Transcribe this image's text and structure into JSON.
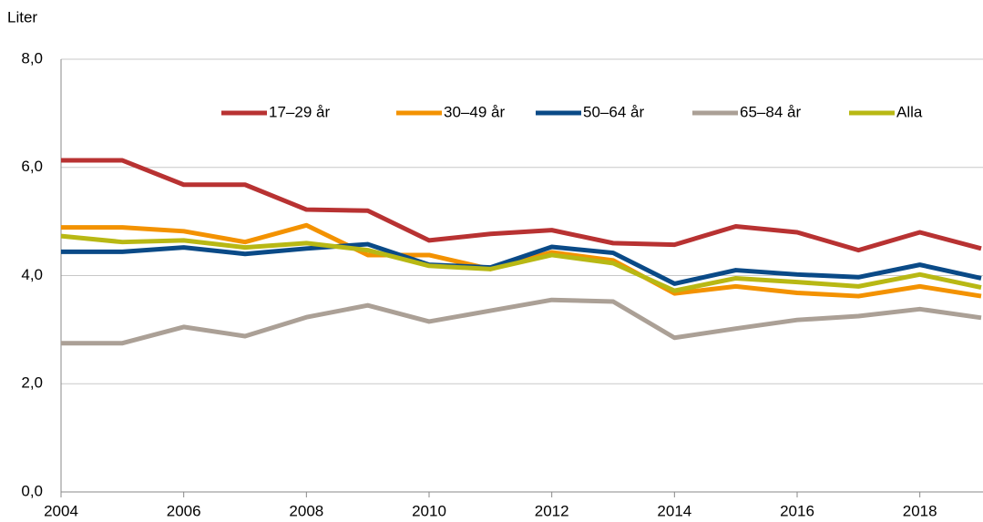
{
  "chart_data": {
    "type": "line",
    "y_label": "Liter",
    "x": [
      2004,
      2005,
      2006,
      2007,
      2008,
      2009,
      2010,
      2011,
      2012,
      2013,
      2014,
      2015,
      2016,
      2017,
      2018,
      2019
    ],
    "xlim": [
      2004,
      2019
    ],
    "xticks": [
      2004,
      2006,
      2008,
      2010,
      2012,
      2014,
      2016,
      2018
    ],
    "ylim": [
      0,
      8
    ],
    "yticks": [
      {
        "value": 0,
        "label": "0,0"
      },
      {
        "value": 2,
        "label": "2,0"
      },
      {
        "value": 4,
        "label": "4,0"
      },
      {
        "value": 6,
        "label": "6,0"
      },
      {
        "value": 8,
        "label": "8,0"
      }
    ],
    "grid": true,
    "legend": "top",
    "series": [
      {
        "name": "17–29 år",
        "color": "#b83232",
        "values": [
          6.13,
          6.13,
          5.68,
          5.68,
          5.22,
          5.2,
          4.65,
          4.77,
          4.84,
          4.6,
          4.57,
          4.91,
          4.8,
          4.47,
          4.8,
          4.5
        ]
      },
      {
        "name": "30–49 år",
        "color": "#f39200",
        "values": [
          4.89,
          4.89,
          4.82,
          4.62,
          4.93,
          4.38,
          4.38,
          4.12,
          4.43,
          4.28,
          3.67,
          3.8,
          3.68,
          3.62,
          3.8,
          3.62
        ]
      },
      {
        "name": "50–64 år",
        "color": "#0a4a87",
        "values": [
          4.44,
          4.44,
          4.52,
          4.4,
          4.5,
          4.58,
          4.2,
          4.15,
          4.53,
          4.42,
          3.85,
          4.1,
          4.02,
          3.97,
          4.2,
          3.95
        ]
      },
      {
        "name": "65–84 år",
        "color": "#aba096",
        "values": [
          2.75,
          2.75,
          3.05,
          2.88,
          3.23,
          3.45,
          3.15,
          3.35,
          3.55,
          3.52,
          2.85,
          3.02,
          3.18,
          3.25,
          3.38,
          3.22
        ]
      },
      {
        "name": "Alla",
        "color": "#b8b814",
        "values": [
          4.73,
          4.62,
          4.65,
          4.52,
          4.6,
          4.47,
          4.18,
          4.12,
          4.38,
          4.23,
          3.72,
          3.95,
          3.88,
          3.8,
          4.02,
          3.78
        ]
      }
    ]
  }
}
